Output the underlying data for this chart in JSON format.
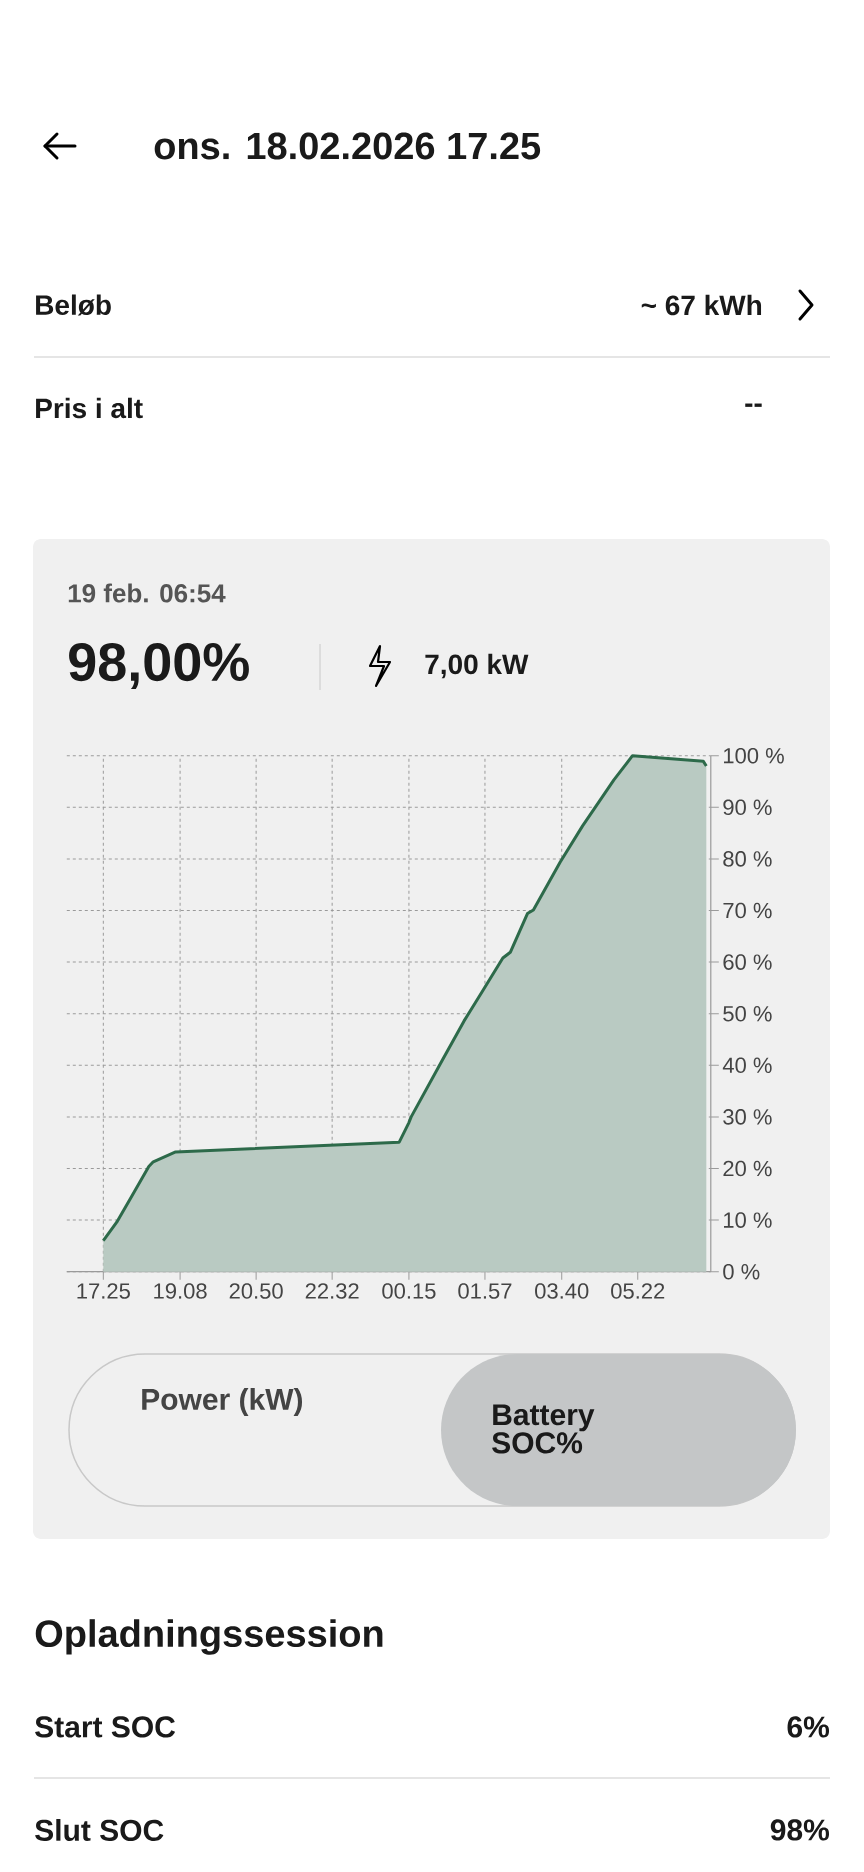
{
  "chart_data": {
    "type": "area",
    "title": "ons. 18.02.2026 17.25",
    "annotations": [
      "Beløb",
      "~ 67 kWh",
      "Pris i alt",
      "--",
      "19 feb. 06:54",
      "98,00%",
      "7,00 kW",
      "Power (kW)",
      "Battery SOC%",
      "Opladningssession",
      "Start SOC",
      "6%",
      "Slut SOC",
      "98%"
    ],
    "x": [
      "2026-02-18T17:25",
      "2026-02-18T17:43",
      "2026-02-18T18:01",
      "2026-02-18T18:26",
      "2026-02-18T18:32",
      "2026-02-18T19:02",
      "2026-02-19T00:02",
      "2026-02-19T00:15",
      "2026-02-19T00:18",
      "2026-02-19T00:59",
      "2026-02-19T01:29",
      "2026-02-19T01:53",
      "2026-02-19T02:21",
      "2026-02-19T02:31",
      "2026-02-19T02:54",
      "2026-02-19T03:02",
      "2026-02-19T03:38",
      "2026-02-19T04:08",
      "2026-02-19T04:24",
      "2026-02-19T04:50",
      "2026-02-19T05:15",
      "2026-02-19T06:50",
      "2026-02-19T06:54"
    ],
    "series": [
      {
        "color": "#2d6a4a",
        "values": [
          6,
          9.6,
          14.1,
          20.4,
          21.3,
          23.2,
          25.1,
          28.9,
          30,
          40.8,
          48.6,
          54.2,
          60.8,
          61.9,
          69.4,
          70.1,
          79.4,
          86.4,
          89.8,
          95.3,
          100,
          98.9,
          98
        ]
      }
    ],
    "xlim": [
      "2026-02-18T16:36",
      "2026-02-19T07:00"
    ],
    "xticks": [
      {
        "value": "2026-02-18T17:25",
        "label": "17.25"
      },
      {
        "value": "2026-02-18T19:08",
        "label": "19.08"
      },
      {
        "value": "2026-02-18T20:50",
        "label": "20.50"
      },
      {
        "value": "2026-02-18T22:32",
        "label": "22.32"
      },
      {
        "value": "2026-02-19T00:15",
        "label": "00.15"
      },
      {
        "value": "2026-02-19T01:57",
        "label": "01.57"
      },
      {
        "value": "2026-02-19T03:40",
        "label": "03.40"
      },
      {
        "value": "2026-02-19T05:22",
        "label": "05.22"
      }
    ],
    "ylim": [
      0,
      100
    ],
    "yticks": [
      {
        "value": 0,
        "label": "0 %"
      },
      {
        "value": 10,
        "label": "10 %"
      },
      {
        "value": 20,
        "label": "20 %"
      },
      {
        "value": 30,
        "label": "30 %"
      },
      {
        "value": 40,
        "label": "40 %"
      },
      {
        "value": 50,
        "label": "50 %"
      },
      {
        "value": 60,
        "label": "60 %"
      },
      {
        "value": 70,
        "label": "70 %"
      },
      {
        "value": 80,
        "label": "80 %"
      },
      {
        "value": 90,
        "label": "90 %"
      },
      {
        "value": 100,
        "label": "100 %"
      }
    ],
    "grid": true
  }
}
